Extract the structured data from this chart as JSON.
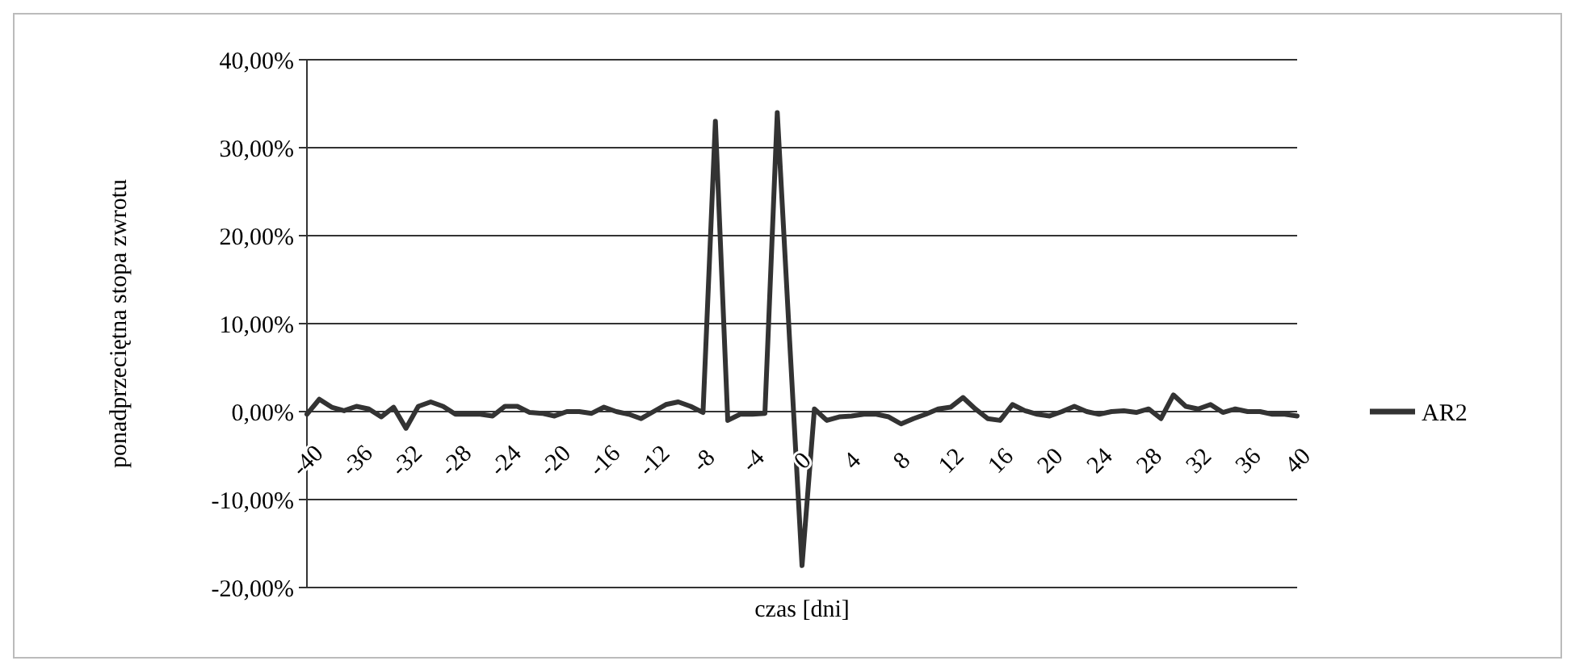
{
  "chart_data": {
    "type": "line",
    "xlabel": "czas [dni]",
    "ylabel": "ponadprzeciętna stopa zwrotu",
    "x": [
      -40,
      -39,
      -38,
      -37,
      -36,
      -35,
      -34,
      -33,
      -32,
      -31,
      -30,
      -29,
      -28,
      -27,
      -26,
      -25,
      -24,
      -23,
      -22,
      -21,
      -20,
      -19,
      -18,
      -17,
      -16,
      -15,
      -14,
      -13,
      -12,
      -11,
      -10,
      -9,
      -8,
      -7,
      -6,
      -5,
      -4,
      -3,
      -2,
      -1,
      0,
      1,
      2,
      3,
      4,
      5,
      6,
      7,
      8,
      9,
      10,
      11,
      12,
      13,
      14,
      15,
      16,
      17,
      18,
      19,
      20,
      21,
      22,
      23,
      24,
      25,
      26,
      27,
      28,
      29,
      30,
      31,
      32,
      33,
      34,
      35,
      36,
      37,
      38,
      39,
      40
    ],
    "series": [
      {
        "name": "AR2",
        "color": "#333333",
        "values": [
          -0.3,
          1.4,
          0.5,
          0.1,
          0.6,
          0.3,
          -0.6,
          0.5,
          -1.9,
          0.6,
          1.1,
          0.6,
          -0.3,
          -0.3,
          -0.3,
          -0.5,
          0.6,
          0.6,
          -0.1,
          -0.2,
          -0.5,
          0,
          0,
          -0.2,
          0.5,
          0,
          -0.3,
          -0.8,
          0,
          0.8,
          1.1,
          0.6,
          -0.1,
          33,
          -1,
          -0.3,
          -0.3,
          -0.2,
          34,
          8,
          -17.5,
          0.3,
          -1,
          -0.6,
          -0.5,
          -0.3,
          -0.3,
          -0.6,
          -1.4,
          -0.8,
          -0.3,
          0.3,
          0.5,
          1.6,
          0.3,
          -0.8,
          -1,
          0.8,
          0.1,
          -0.3,
          -0.5,
          0,
          0.6,
          0,
          -0.3,
          0,
          0.1,
          -0.1,
          0.3,
          -0.8,
          1.9,
          0.6,
          0.3,
          0.8,
          -0.1,
          0.3,
          0,
          0,
          -0.3,
          -0.3,
          -0.5
        ]
      }
    ],
    "xlim": [
      -40,
      40
    ],
    "xticks": [
      -40,
      -36,
      -32,
      -28,
      -24,
      -20,
      -16,
      -12,
      -8,
      -4,
      0,
      4,
      8,
      12,
      16,
      20,
      24,
      28,
      32,
      36,
      40
    ],
    "ylim": [
      -20,
      40
    ],
    "yticks": [
      {
        "value": -20,
        "label": "-20,00%"
      },
      {
        "value": -10,
        "label": "-10,00%"
      },
      {
        "value": 0,
        "label": "0,00%"
      },
      {
        "value": 10,
        "label": "10,00%"
      },
      {
        "value": 20,
        "label": "20,00%"
      },
      {
        "value": 30,
        "label": "30,00%"
      },
      {
        "value": 40,
        "label": "40,00%"
      }
    ],
    "grid": "y",
    "legend": "right",
    "marker": "none",
    "line_style": "solid"
  }
}
